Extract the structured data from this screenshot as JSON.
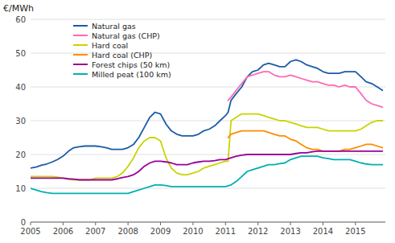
{
  "chart_data": {
    "type": "line",
    "ylabel": "€/MWh",
    "xlim": [
      2005.0,
      2015.92
    ],
    "ylim": [
      0,
      60
    ],
    "xticks": [
      2005,
      2006,
      2007,
      2008,
      2009,
      2010,
      2011,
      2012,
      2013,
      2014,
      2015
    ],
    "yticks": [
      0,
      10,
      20,
      30,
      40,
      50,
      60
    ],
    "grid": true,
    "legend": "upper left",
    "series": [
      {
        "name": "Natural gas",
        "color": "#1a5ca8",
        "x": [
          2005.0,
          2005.17,
          2005.33,
          2005.5,
          2005.67,
          2005.83,
          2006.0,
          2006.17,
          2006.33,
          2006.5,
          2006.67,
          2006.83,
          2007.0,
          2007.17,
          2007.33,
          2007.5,
          2007.67,
          2007.83,
          2008.0,
          2008.17,
          2008.33,
          2008.5,
          2008.67,
          2008.83,
          2009.0,
          2009.17,
          2009.33,
          2009.5,
          2009.67,
          2009.83,
          2010.0,
          2010.17,
          2010.33,
          2010.5,
          2010.67,
          2010.83,
          2011.0,
          2011.08,
          2011.17,
          2011.33,
          2011.5,
          2011.67,
          2011.83,
          2012.0,
          2012.17,
          2012.33,
          2012.5,
          2012.67,
          2012.83,
          2013.0,
          2013.17,
          2013.33,
          2013.5,
          2013.67,
          2013.83,
          2014.0,
          2014.17,
          2014.33,
          2014.5,
          2014.67,
          2014.83,
          2015.0,
          2015.17,
          2015.33,
          2015.5,
          2015.67,
          2015.83
        ],
        "values": [
          16.0,
          16.3,
          16.8,
          17.2,
          17.8,
          18.5,
          19.5,
          21.0,
          22.0,
          22.3,
          22.5,
          22.5,
          22.5,
          22.3,
          22.0,
          21.5,
          21.5,
          21.5,
          22.0,
          23.0,
          25.0,
          28.0,
          31.0,
          32.5,
          32.0,
          29.0,
          27.0,
          26.0,
          25.5,
          25.5,
          25.5,
          26.0,
          27.0,
          27.5,
          28.5,
          30.0,
          31.5,
          32.5,
          36.0,
          38.0,
          40.0,
          43.0,
          44.5,
          45.0,
          46.5,
          47.0,
          46.5,
          46.0,
          46.0,
          47.5,
          48.0,
          47.5,
          46.5,
          46.0,
          45.5,
          44.5,
          44.0,
          44.0,
          44.0,
          44.5,
          44.5,
          44.5,
          43.0,
          41.5,
          41.0,
          40.0,
          39.0
        ]
      },
      {
        "name": "Natural gas (CHP)",
        "color": "#ff69b4",
        "x": [
          2011.08,
          2011.17,
          2011.33,
          2011.5,
          2011.67,
          2011.83,
          2012.0,
          2012.17,
          2012.33,
          2012.5,
          2012.67,
          2012.83,
          2013.0,
          2013.17,
          2013.33,
          2013.5,
          2013.67,
          2013.83,
          2014.0,
          2014.17,
          2014.33,
          2014.5,
          2014.67,
          2014.83,
          2015.0,
          2015.17,
          2015.33,
          2015.5,
          2015.67,
          2015.83
        ],
        "values": [
          36.0,
          37.0,
          39.0,
          41.0,
          43.0,
          43.5,
          44.0,
          44.5,
          44.5,
          43.5,
          43.0,
          43.0,
          43.5,
          43.0,
          42.5,
          42.0,
          41.5,
          41.5,
          41.0,
          40.5,
          40.5,
          40.0,
          40.5,
          40.0,
          40.0,
          38.0,
          36.0,
          35.0,
          34.5,
          34.0
        ]
      },
      {
        "name": "Hard coal",
        "color": "#c8d400",
        "x": [
          2005.0,
          2005.17,
          2005.33,
          2005.5,
          2005.67,
          2005.83,
          2006.0,
          2006.17,
          2006.33,
          2006.5,
          2006.67,
          2006.83,
          2007.0,
          2007.17,
          2007.33,
          2007.5,
          2007.67,
          2007.83,
          2008.0,
          2008.17,
          2008.33,
          2008.5,
          2008.67,
          2008.83,
          2009.0,
          2009.17,
          2009.33,
          2009.5,
          2009.67,
          2009.83,
          2010.0,
          2010.17,
          2010.33,
          2010.5,
          2010.67,
          2010.83,
          2011.0,
          2011.08,
          2011.17,
          2011.33,
          2011.5,
          2011.67,
          2011.83,
          2012.0,
          2012.17,
          2012.33,
          2012.5,
          2012.67,
          2012.83,
          2013.0,
          2013.17,
          2013.33,
          2013.5,
          2013.67,
          2013.83,
          2014.0,
          2014.17,
          2014.33,
          2014.5,
          2014.67,
          2014.83,
          2015.0,
          2015.17,
          2015.33,
          2015.5,
          2015.67,
          2015.83
        ],
        "values": [
          13.5,
          13.5,
          13.5,
          13.5,
          13.5,
          13.3,
          13.0,
          12.7,
          12.5,
          12.5,
          12.5,
          12.5,
          13.0,
          13.0,
          13.0,
          13.0,
          13.5,
          14.5,
          16.5,
          19.0,
          22.0,
          24.0,
          25.0,
          25.0,
          24.0,
          19.0,
          16.0,
          14.5,
          14.0,
          14.0,
          14.5,
          15.0,
          16.0,
          16.5,
          17.0,
          17.5,
          18.0,
          18.0,
          30.0,
          31.0,
          32.0,
          32.0,
          32.0,
          32.0,
          31.5,
          31.0,
          30.5,
          30.0,
          30.0,
          29.5,
          29.0,
          28.5,
          28.0,
          28.0,
          28.0,
          27.5,
          27.0,
          27.0,
          27.0,
          27.0,
          27.0,
          27.0,
          27.5,
          28.5,
          29.5,
          30.0,
          30.0
        ]
      },
      {
        "name": "Hard coal (CHP)",
        "color": "#ff8c00",
        "x": [
          2011.08,
          2011.17,
          2011.33,
          2011.5,
          2011.67,
          2011.83,
          2012.0,
          2012.17,
          2012.33,
          2012.5,
          2012.67,
          2012.83,
          2013.0,
          2013.17,
          2013.33,
          2013.5,
          2013.67,
          2013.83,
          2014.0,
          2014.17,
          2014.33,
          2014.5,
          2014.67,
          2014.83,
          2015.0,
          2015.17,
          2015.33,
          2015.5,
          2015.67,
          2015.83
        ],
        "values": [
          25.0,
          26.0,
          26.5,
          27.0,
          27.0,
          27.0,
          27.0,
          27.0,
          26.5,
          26.0,
          25.5,
          25.5,
          24.5,
          24.0,
          23.0,
          22.0,
          21.5,
          21.5,
          21.0,
          21.0,
          21.0,
          21.0,
          21.5,
          21.5,
          22.0,
          22.5,
          23.0,
          23.0,
          22.5,
          22.0
        ]
      },
      {
        "name": "Forest chips (50 km)",
        "color": "#990099",
        "x": [
          2005.0,
          2005.17,
          2005.33,
          2005.5,
          2005.67,
          2005.83,
          2006.0,
          2006.17,
          2006.33,
          2006.5,
          2006.67,
          2006.83,
          2007.0,
          2007.17,
          2007.33,
          2007.5,
          2007.67,
          2007.83,
          2008.0,
          2008.17,
          2008.33,
          2008.5,
          2008.67,
          2008.83,
          2009.0,
          2009.17,
          2009.33,
          2009.5,
          2009.67,
          2009.83,
          2010.0,
          2010.17,
          2010.33,
          2010.5,
          2010.67,
          2010.83,
          2011.0,
          2011.17,
          2011.33,
          2011.5,
          2011.67,
          2011.83,
          2012.0,
          2012.17,
          2012.33,
          2012.5,
          2012.67,
          2012.83,
          2013.0,
          2013.17,
          2013.33,
          2013.5,
          2013.67,
          2013.83,
          2014.0,
          2014.17,
          2014.33,
          2014.5,
          2014.67,
          2014.83,
          2015.0,
          2015.17,
          2015.33,
          2015.5,
          2015.67,
          2015.83
        ],
        "values": [
          13.0,
          13.0,
          13.0,
          13.0,
          13.0,
          13.0,
          13.0,
          12.8,
          12.7,
          12.5,
          12.5,
          12.5,
          12.5,
          12.5,
          12.5,
          12.5,
          12.8,
          13.2,
          13.5,
          14.0,
          15.0,
          16.5,
          17.5,
          18.0,
          18.0,
          17.8,
          17.5,
          17.0,
          17.0,
          17.0,
          17.5,
          17.8,
          18.0,
          18.0,
          18.2,
          18.5,
          18.5,
          19.0,
          19.5,
          19.8,
          20.0,
          20.0,
          20.0,
          20.0,
          20.0,
          20.0,
          20.0,
          20.0,
          20.0,
          20.3,
          20.5,
          20.5,
          20.8,
          21.0,
          21.0,
          21.0,
          21.0,
          21.0,
          21.0,
          21.0,
          21.0,
          21.0,
          21.0,
          21.0,
          21.0,
          21.0
        ]
      },
      {
        "name": "Milled peat (100 km)",
        "color": "#00b0b0",
        "x": [
          2005.0,
          2005.17,
          2005.33,
          2005.5,
          2005.67,
          2005.83,
          2006.0,
          2006.17,
          2006.33,
          2006.5,
          2006.67,
          2006.83,
          2007.0,
          2007.17,
          2007.33,
          2007.5,
          2007.67,
          2007.83,
          2008.0,
          2008.17,
          2008.33,
          2008.5,
          2008.67,
          2008.83,
          2009.0,
          2009.17,
          2009.33,
          2009.5,
          2009.67,
          2009.83,
          2010.0,
          2010.17,
          2010.33,
          2010.5,
          2010.67,
          2010.83,
          2011.0,
          2011.17,
          2011.33,
          2011.5,
          2011.67,
          2011.83,
          2012.0,
          2012.17,
          2012.33,
          2012.5,
          2012.67,
          2012.83,
          2013.0,
          2013.17,
          2013.33,
          2013.5,
          2013.67,
          2013.83,
          2014.0,
          2014.17,
          2014.33,
          2014.5,
          2014.67,
          2014.83,
          2015.0,
          2015.17,
          2015.33,
          2015.5,
          2015.67,
          2015.83
        ],
        "values": [
          10.0,
          9.5,
          9.0,
          8.7,
          8.5,
          8.5,
          8.5,
          8.5,
          8.5,
          8.5,
          8.5,
          8.5,
          8.5,
          8.5,
          8.5,
          8.5,
          8.5,
          8.5,
          8.5,
          9.0,
          9.5,
          10.0,
          10.5,
          11.0,
          11.0,
          10.8,
          10.5,
          10.5,
          10.5,
          10.5,
          10.5,
          10.5,
          10.5,
          10.5,
          10.5,
          10.5,
          10.5,
          11.0,
          12.0,
          13.5,
          15.0,
          15.5,
          16.0,
          16.5,
          17.0,
          17.0,
          17.3,
          17.5,
          18.5,
          19.0,
          19.5,
          19.5,
          19.5,
          19.5,
          19.0,
          18.8,
          18.5,
          18.5,
          18.5,
          18.5,
          18.0,
          17.5,
          17.2,
          17.0,
          17.0,
          17.0
        ]
      }
    ]
  }
}
